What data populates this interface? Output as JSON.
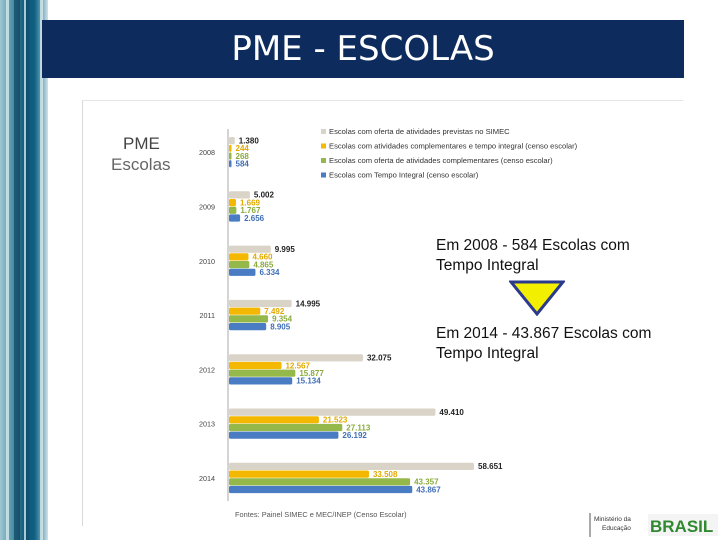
{
  "slide": {
    "title": "PME - ESCOLAS",
    "callout1": "Em 2008 -  584 Escolas com Tempo Integral",
    "callout2": "Em 2014 - 43.867  Escolas com Tempo Integral",
    "arrow_icon": "arrow-down-icon",
    "logo": {
      "ministry_text": "Ministério da Educação",
      "brand_text": "BRASIL"
    }
  },
  "chart_data": {
    "type": "bar",
    "orientation": "horizontal",
    "title": "PME",
    "subtitle": "Escolas",
    "source": "Fontes: Painel  SIMEC e MEC/INEP (Censo Escolar)",
    "categories": [
      "2008",
      "2009",
      "2010",
      "2011",
      "2012",
      "2013",
      "2014"
    ],
    "series": [
      {
        "name": "Escolas com oferta de atividades  previstas no SIMEC",
        "color": "#d9d4c7",
        "values": [
          1380,
          5002,
          9995,
          14995,
          32075,
          49410,
          58651
        ],
        "labels": [
          "1.380",
          "5.002",
          "9.995",
          "14.995",
          "32.075",
          "49.410",
          "58.651"
        ]
      },
      {
        "name": "Escolas com atividades  complementares e tempo integral (censo escolar)",
        "color": "#f5b800",
        "values": [
          244,
          1669,
          4660,
          7492,
          12567,
          21523,
          33508
        ],
        "labels": [
          "244",
          "1.669",
          "4.660",
          "7.492",
          "12.567",
          "21.523",
          "33.508"
        ]
      },
      {
        "name": "Escolas com oferta de atividades complementares (censo escolar)",
        "color": "#95b84a",
        "values": [
          268,
          1767,
          4865,
          9354,
          15877,
          27113,
          43357
        ],
        "labels": [
          "268",
          "1.767",
          "4.865",
          "9.354",
          "15.877",
          "27.113",
          "43.357"
        ]
      },
      {
        "name": "Escolas com Tempo Integral (censo escolar)",
        "color": "#4a7cc4",
        "values": [
          584,
          2656,
          6334,
          8905,
          15134,
          26192,
          43867
        ],
        "labels": [
          "584",
          "2.656",
          "6.334",
          "8.905",
          "15.134",
          "26.192",
          "43.867"
        ]
      }
    ],
    "legend_position": "top-right"
  }
}
